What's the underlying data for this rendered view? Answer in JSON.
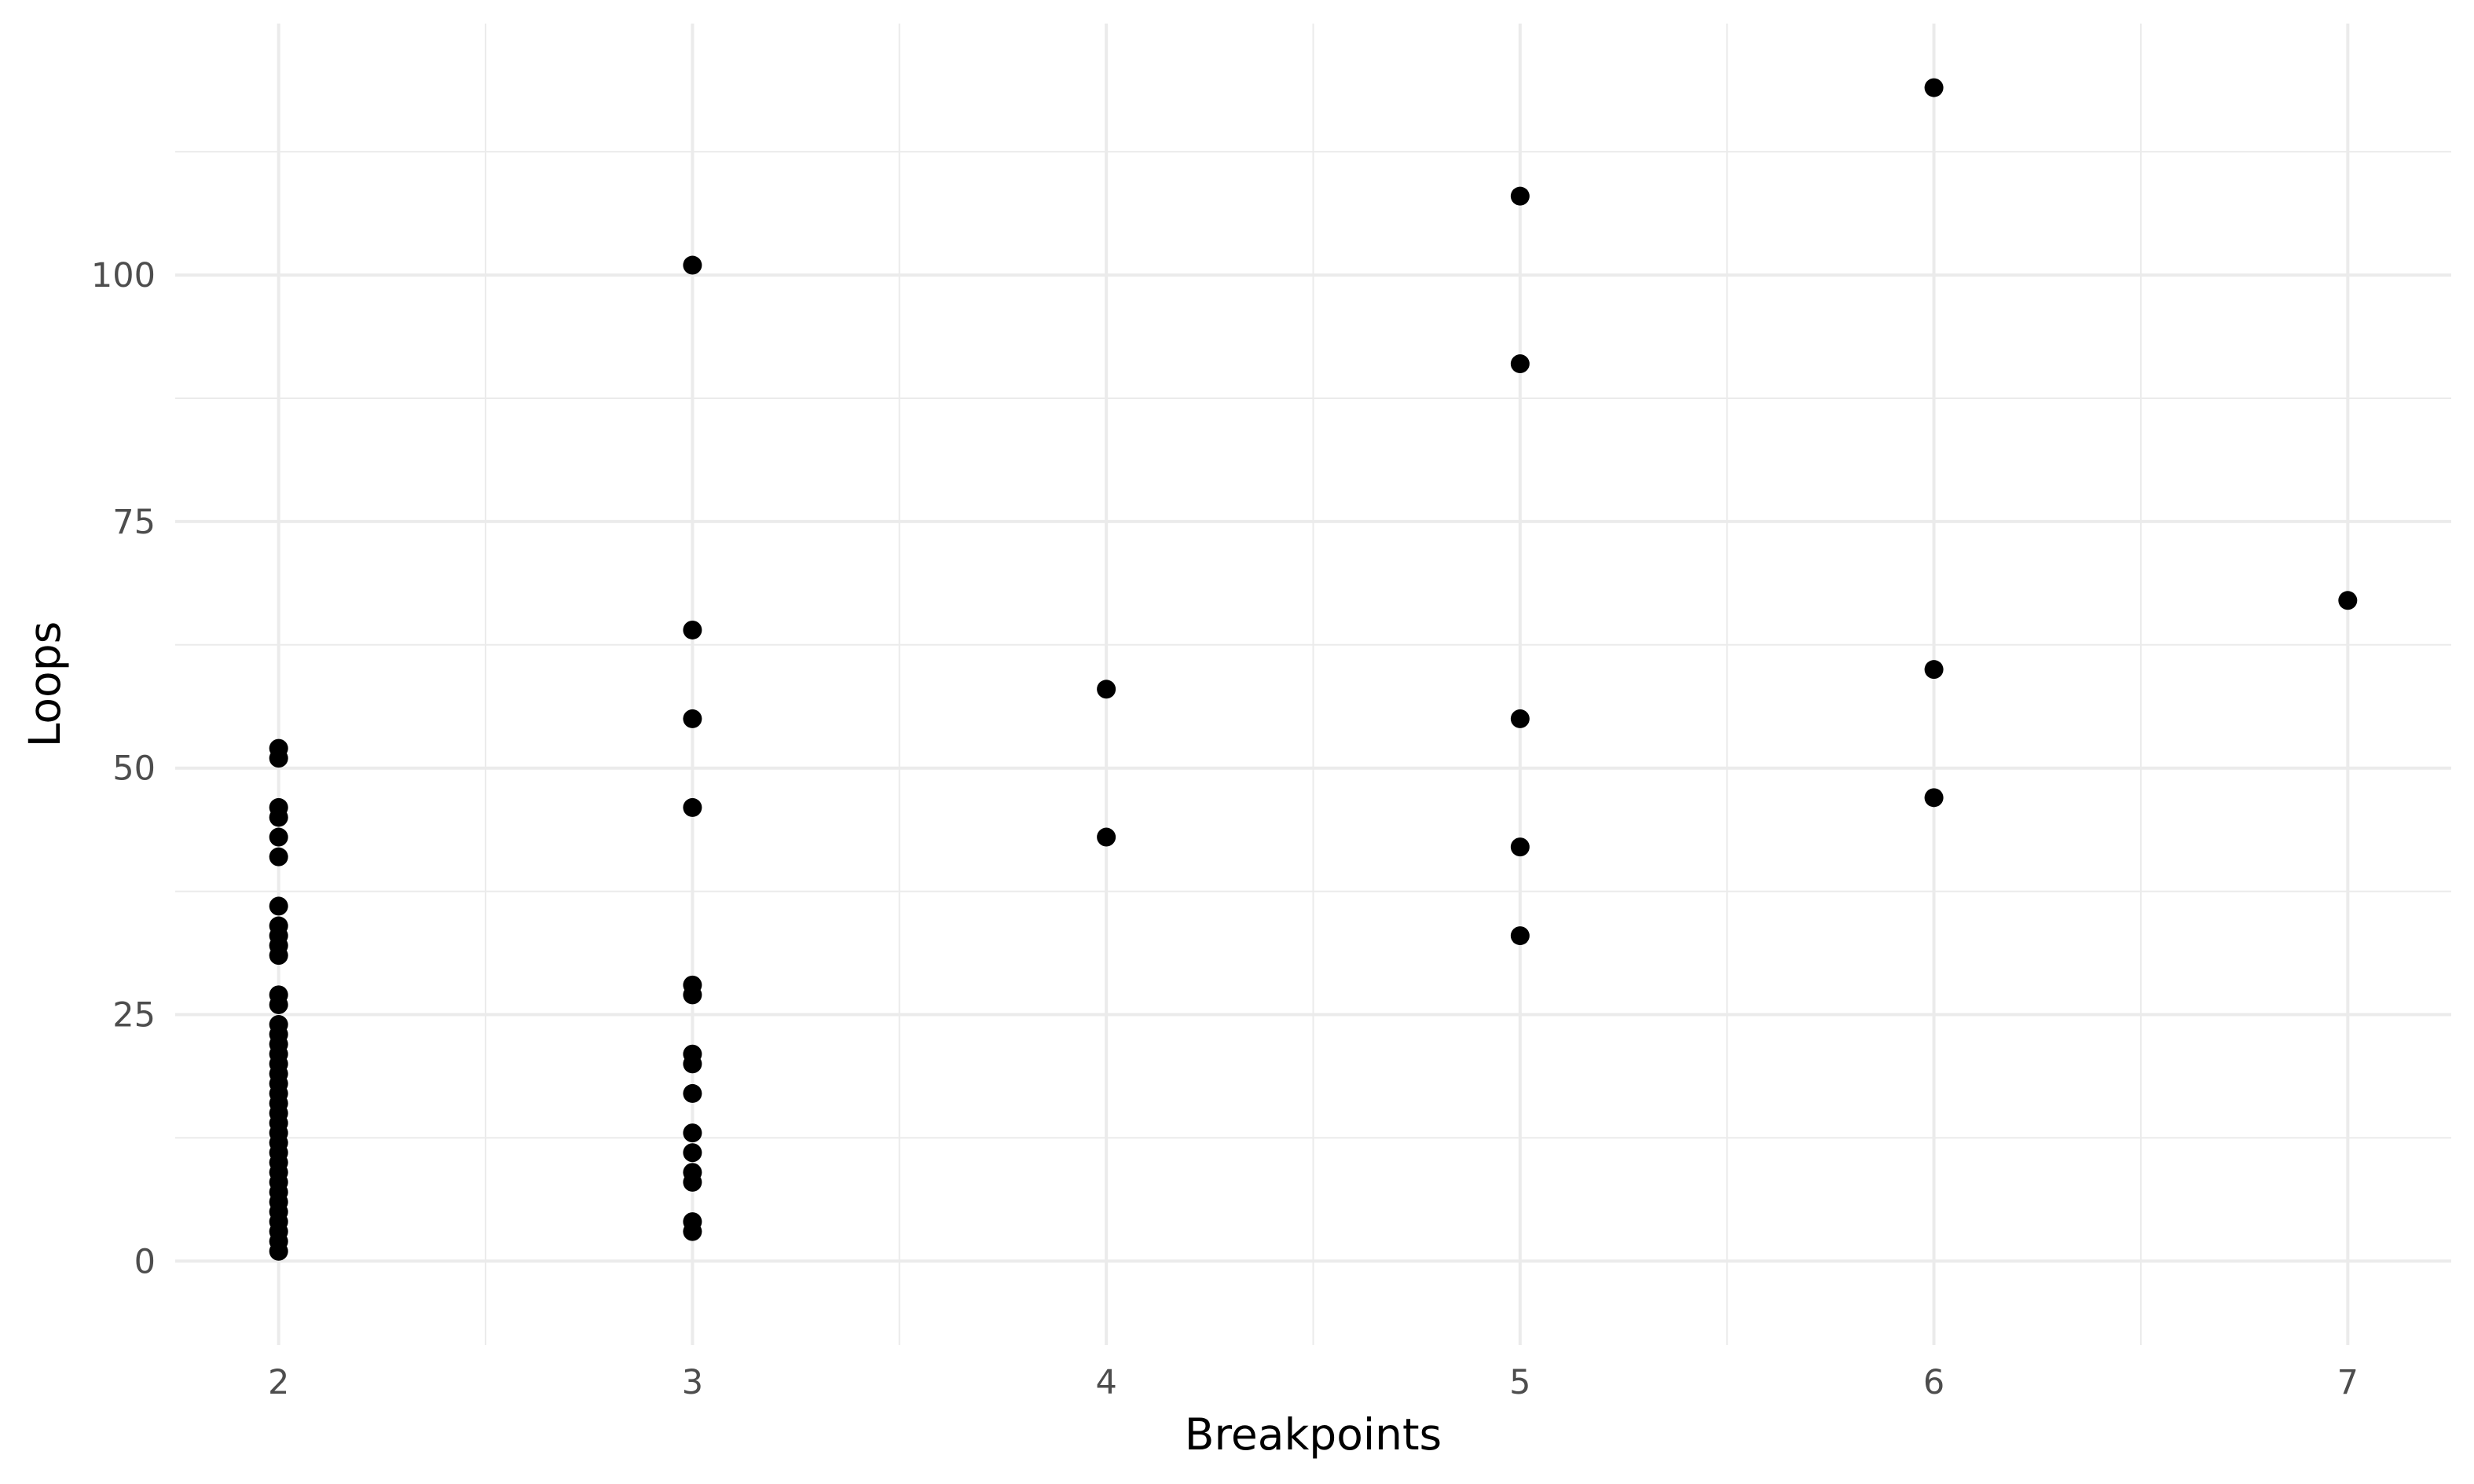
{
  "chart_data": {
    "type": "scatter",
    "title": "",
    "xlabel": "Breakpoints",
    "ylabel": "Loops",
    "xlim": [
      1.75,
      7.25
    ],
    "ylim": [
      -8.5,
      125.5
    ],
    "x_ticks": [
      2,
      3,
      4,
      5,
      6,
      7
    ],
    "x_tick_labels": [
      "2",
      "3",
      "4",
      "5",
      "6",
      "7"
    ],
    "y_ticks": [
      0,
      25,
      50,
      75,
      100
    ],
    "y_tick_labels": [
      "0",
      "25",
      "50",
      "75",
      "100"
    ],
    "grid": true,
    "legend": "none",
    "point_color": "#000000",
    "grid_color": "#ebebeb",
    "points": [
      {
        "x": 2,
        "y": 52
      },
      {
        "x": 2,
        "y": 51
      },
      {
        "x": 2,
        "y": 46
      },
      {
        "x": 2,
        "y": 45
      },
      {
        "x": 2,
        "y": 43
      },
      {
        "x": 2,
        "y": 41
      },
      {
        "x": 2,
        "y": 36
      },
      {
        "x": 2,
        "y": 34
      },
      {
        "x": 2,
        "y": 33
      },
      {
        "x": 2,
        "y": 32
      },
      {
        "x": 2,
        "y": 31
      },
      {
        "x": 2,
        "y": 27
      },
      {
        "x": 2,
        "y": 26
      },
      {
        "x": 2,
        "y": 24
      },
      {
        "x": 2,
        "y": 23
      },
      {
        "x": 2,
        "y": 22
      },
      {
        "x": 2,
        "y": 21
      },
      {
        "x": 2,
        "y": 20
      },
      {
        "x": 2,
        "y": 19
      },
      {
        "x": 2,
        "y": 18
      },
      {
        "x": 2,
        "y": 17
      },
      {
        "x": 2,
        "y": 16
      },
      {
        "x": 2,
        "y": 15
      },
      {
        "x": 2,
        "y": 14
      },
      {
        "x": 2,
        "y": 13
      },
      {
        "x": 2,
        "y": 12
      },
      {
        "x": 2,
        "y": 11
      },
      {
        "x": 2,
        "y": 10
      },
      {
        "x": 2,
        "y": 9
      },
      {
        "x": 2,
        "y": 8
      },
      {
        "x": 2,
        "y": 7
      },
      {
        "x": 2,
        "y": 6
      },
      {
        "x": 2,
        "y": 5
      },
      {
        "x": 2,
        "y": 4
      },
      {
        "x": 2,
        "y": 3
      },
      {
        "x": 2,
        "y": 2
      },
      {
        "x": 2,
        "y": 1
      },
      {
        "x": 3,
        "y": 101
      },
      {
        "x": 3,
        "y": 64
      },
      {
        "x": 3,
        "y": 55
      },
      {
        "x": 3,
        "y": 46
      },
      {
        "x": 3,
        "y": 28
      },
      {
        "x": 3,
        "y": 27
      },
      {
        "x": 3,
        "y": 21
      },
      {
        "x": 3,
        "y": 20
      },
      {
        "x": 3,
        "y": 17
      },
      {
        "x": 3,
        "y": 13
      },
      {
        "x": 3,
        "y": 11
      },
      {
        "x": 3,
        "y": 9
      },
      {
        "x": 3,
        "y": 8
      },
      {
        "x": 3,
        "y": 4
      },
      {
        "x": 3,
        "y": 3
      },
      {
        "x": 4,
        "y": 58
      },
      {
        "x": 4,
        "y": 43
      },
      {
        "x": 5,
        "y": 108
      },
      {
        "x": 5,
        "y": 91
      },
      {
        "x": 5,
        "y": 55
      },
      {
        "x": 5,
        "y": 42
      },
      {
        "x": 5,
        "y": 33
      },
      {
        "x": 6,
        "y": 119
      },
      {
        "x": 6,
        "y": 60
      },
      {
        "x": 6,
        "y": 47
      },
      {
        "x": 7,
        "y": 67
      }
    ]
  }
}
